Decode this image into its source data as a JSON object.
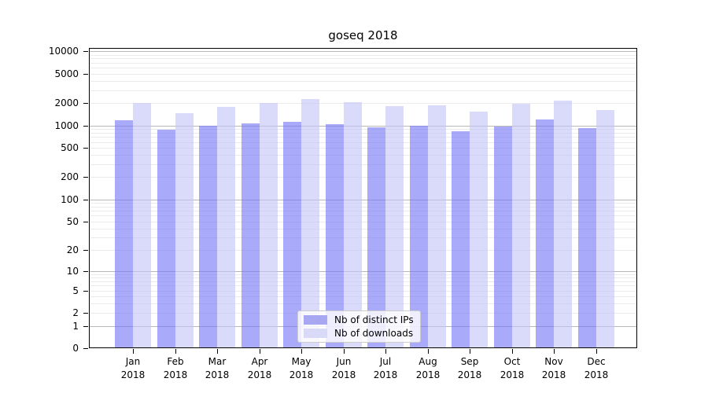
{
  "chart_data": {
    "type": "bar",
    "title": "goseq 2018",
    "categories": [
      "Jan",
      "Feb",
      "Mar",
      "Apr",
      "May",
      "Jun",
      "Jul",
      "Aug",
      "Sep",
      "Oct",
      "Nov",
      "Dec"
    ],
    "category_sublabel": "2018",
    "series": [
      {
        "name": "Nb of distinct IPs",
        "color": "rgba(113,113,247,0.6)",
        "legend_color": "#a7a7f2",
        "values": [
          1170,
          875,
          980,
          1070,
          1120,
          1030,
          950,
          990,
          840,
          965,
          1200,
          910
        ]
      },
      {
        "name": "Nb of downloads",
        "color": "rgba(193,193,247,0.6)",
        "legend_color": "#d9d9f8",
        "values": [
          2020,
          1460,
          1770,
          2020,
          2280,
          2070,
          1820,
          1850,
          1520,
          1970,
          2140,
          1610
        ]
      }
    ],
    "y_axis": {
      "scale": "log1p",
      "ticks": [
        0,
        1,
        2,
        5,
        10,
        20,
        50,
        100,
        200,
        500,
        1000,
        2000,
        5000,
        10000
      ],
      "major_gridlines": [
        1,
        10,
        100,
        1000,
        10000
      ],
      "ylim": [
        0,
        11000
      ]
    },
    "x_axis": {
      "label": ""
    },
    "grid": true,
    "legend_position": "inside-bottom-center"
  },
  "colors": {
    "minor_gridline": "#ebebeb",
    "major_gridline": "#b8b8b8",
    "axis_frame": "#000000"
  }
}
